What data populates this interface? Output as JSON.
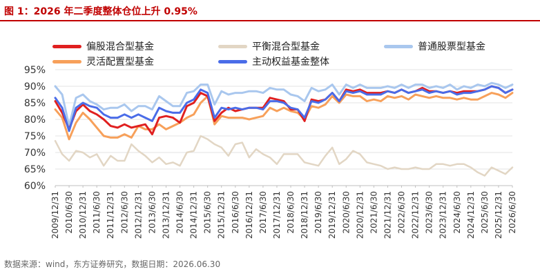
{
  "title": "图 1：2026 年二季度整体仓位上升 0.95%",
  "source": "数据来源：wind，东方证券研究，数据日期：2026.06.30",
  "colors": {
    "accent": "#c00000",
    "偏股混合型基金": "#e02020",
    "平衡混合型基金": "#e2d6c4",
    "普通股票型基金": "#a9c7ee",
    "灵活配置型基金": "#f7a05a",
    "主动权益基金整体": "#4a6ce8",
    "grid": "#e3e3e3",
    "axis_text": "#333333"
  },
  "chart_data": {
    "type": "line",
    "title": "图 1：2026 年二季度整体仓位上升 0.95%",
    "xlabel": "",
    "ylabel": "",
    "ylim": [
      60,
      95
    ],
    "yticks": [
      60,
      65,
      70,
      75,
      80,
      85,
      90,
      95
    ],
    "ytick_labels": [
      "60%",
      "65%",
      "70%",
      "75%",
      "80%",
      "85%",
      "90%",
      "95%"
    ],
    "grid": "horizontal",
    "legend_position": "top",
    "xtick_labels": [
      "2009/12/31",
      "2010/6/30",
      "2010/12/31",
      "2011/6/30",
      "2011/12/31",
      "2012/6/30",
      "2012/12/31",
      "2013/6/30",
      "2013/12/31",
      "2014/6/30",
      "2014/12/31",
      "2015/6/30",
      "2015/12/31",
      "2016/6/30",
      "2016/12/31",
      "2017/6/30",
      "2017/12/31",
      "2018/6/30",
      "2018/12/31",
      "2019/6/30",
      "2019/12/31",
      "2020/6/30",
      "2020/12/31",
      "2021/6/30",
      "2021/12/31",
      "2022/6/30",
      "2022/12/31",
      "2023/6/30",
      "2023/12/31",
      "2024/6/30",
      "2024/12/31",
      "2025/6/30",
      "2025/12/31",
      "2026/6/30"
    ],
    "x": [
      "2009/12/31",
      "2010/3/31",
      "2010/6/30",
      "2010/9/30",
      "2010/12/31",
      "2011/3/31",
      "2011/6/30",
      "2011/9/30",
      "2011/12/31",
      "2012/3/31",
      "2012/6/30",
      "2012/9/30",
      "2012/12/31",
      "2013/3/31",
      "2013/6/30",
      "2013/9/30",
      "2013/12/31",
      "2014/3/31",
      "2014/6/30",
      "2014/9/30",
      "2014/12/31",
      "2015/3/31",
      "2015/6/30",
      "2015/9/30",
      "2015/12/31",
      "2016/3/31",
      "2016/6/30",
      "2016/9/30",
      "2016/12/31",
      "2017/3/31",
      "2017/6/30",
      "2017/9/30",
      "2017/12/31",
      "2018/3/31",
      "2018/6/30",
      "2018/9/30",
      "2018/12/31",
      "2019/3/31",
      "2019/6/30",
      "2019/9/30",
      "2019/12/31",
      "2020/3/31",
      "2020/6/30",
      "2020/9/30",
      "2020/12/31",
      "2021/3/31",
      "2021/6/30",
      "2021/9/30",
      "2021/12/31",
      "2022/3/31",
      "2022/6/30",
      "2022/9/30",
      "2022/12/31",
      "2023/3/31",
      "2023/6/30",
      "2023/9/30",
      "2023/12/31",
      "2024/3/31",
      "2024/6/30",
      "2024/9/30",
      "2024/12/31",
      "2025/3/31",
      "2025/6/30",
      "2025/9/30",
      "2025/12/31",
      "2026/3/31",
      "2026/6/30"
    ],
    "series": [
      {
        "name": "偏股混合型基金",
        "color": "#e02020",
        "width": 3,
        "values": [
          85.5,
          82.0,
          77.0,
          82.5,
          84.5,
          82.5,
          81.5,
          80.0,
          78.0,
          77.5,
          78.5,
          77.5,
          78.0,
          78.5,
          75.5,
          80.5,
          81.0,
          80.5,
          79.0,
          84.0,
          85.0,
          88.0,
          87.0,
          79.5,
          82.0,
          83.5,
          82.5,
          83.0,
          83.5,
          83.5,
          83.5,
          86.5,
          86.0,
          85.5,
          83.0,
          83.0,
          79.5,
          86.0,
          85.5,
          86.0,
          88.0,
          85.5,
          89.0,
          88.5,
          89.0,
          88.0,
          88.0,
          88.0,
          88.5,
          88.0,
          89.0,
          88.0,
          88.5,
          89.5,
          88.5,
          88.5,
          88.0,
          88.5,
          88.0,
          88.5,
          88.5,
          88.5,
          89.0,
          90.0,
          89.5,
          88.0,
          89.0
        ]
      },
      {
        "name": "平衡混合型基金",
        "color": "#e2d6c4",
        "width": 2.5,
        "values": [
          73.5,
          69.5,
          67.5,
          70.5,
          70.0,
          68.5,
          69.5,
          66.0,
          69.0,
          67.5,
          67.5,
          72.5,
          70.5,
          69.0,
          67.0,
          68.5,
          66.5,
          67.0,
          66.0,
          70.0,
          70.5,
          75.0,
          74.0,
          72.5,
          71.5,
          69.0,
          72.5,
          73.0,
          68.5,
          71.0,
          69.5,
          68.5,
          66.5,
          69.5,
          69.5,
          69.5,
          67.0,
          66.5,
          66.0,
          69.0,
          71.5,
          66.5,
          68.0,
          70.5,
          69.5,
          67.0,
          66.5,
          66.0,
          65.0,
          65.5,
          65.0,
          65.0,
          65.5,
          65.0,
          65.0,
          66.5,
          66.5,
          66.0,
          66.5,
          66.5,
          65.5,
          64.0,
          63.0,
          65.5,
          64.5,
          63.5,
          65.5
        ]
      },
      {
        "name": "普通股票型基金",
        "color": "#a9c7ee",
        "width": 3,
        "values": [
          90.0,
          87.5,
          78.0,
          86.5,
          87.5,
          85.5,
          84.5,
          83.0,
          83.5,
          83.5,
          84.5,
          82.5,
          84.0,
          84.0,
          83.0,
          87.0,
          85.5,
          84.0,
          84.0,
          88.0,
          88.5,
          90.5,
          90.5,
          84.5,
          88.5,
          87.5,
          88.0,
          88.0,
          88.5,
          88.5,
          88.0,
          89.5,
          89.0,
          89.0,
          87.5,
          87.0,
          85.5,
          89.5,
          88.5,
          89.0,
          90.5,
          87.5,
          90.5,
          89.5,
          90.5,
          89.5,
          89.5,
          89.5,
          90.0,
          89.5,
          90.5,
          89.5,
          90.5,
          90.5,
          89.5,
          90.0,
          89.5,
          90.5,
          89.0,
          90.0,
          89.5,
          90.5,
          90.0,
          91.0,
          90.5,
          89.5,
          90.5
        ]
      },
      {
        "name": "灵活配置型基金",
        "color": "#f7a05a",
        "width": 3,
        "values": [
          83.0,
          80.5,
          74.0,
          79.0,
          82.0,
          80.0,
          77.5,
          75.0,
          74.5,
          74.5,
          75.5,
          74.5,
          78.0,
          77.0,
          77.0,
          78.5,
          77.0,
          78.0,
          79.0,
          80.5,
          81.5,
          85.0,
          87.0,
          78.5,
          81.0,
          80.5,
          80.5,
          80.5,
          80.0,
          80.5,
          81.0,
          83.5,
          82.5,
          83.5,
          82.5,
          82.0,
          80.0,
          84.0,
          83.5,
          84.5,
          87.0,
          85.0,
          87.5,
          87.0,
          87.0,
          85.5,
          86.0,
          85.5,
          87.0,
          86.5,
          87.0,
          86.0,
          87.5,
          87.0,
          86.5,
          87.0,
          86.5,
          86.5,
          86.0,
          86.5,
          86.0,
          86.0,
          87.0,
          88.0,
          87.5,
          86.5,
          88.0
        ]
      },
      {
        "name": "主动权益基金整体",
        "color": "#4a6ce8",
        "width": 3,
        "values": [
          86.5,
          83.5,
          76.5,
          83.5,
          85.0,
          84.0,
          83.5,
          81.5,
          80.5,
          80.5,
          81.5,
          80.5,
          81.5,
          80.5,
          79.5,
          83.5,
          82.5,
          82.0,
          82.0,
          85.0,
          86.0,
          89.0,
          88.0,
          80.5,
          83.5,
          83.0,
          83.5,
          83.0,
          83.5,
          83.5,
          83.0,
          85.5,
          85.5,
          85.0,
          83.5,
          83.0,
          80.5,
          85.5,
          85.0,
          86.0,
          88.0,
          85.5,
          88.5,
          88.0,
          88.5,
          87.5,
          87.5,
          87.5,
          88.5,
          88.0,
          89.0,
          88.0,
          88.5,
          89.0,
          88.0,
          88.5,
          88.0,
          88.5,
          87.5,
          88.0,
          88.0,
          88.5,
          89.0,
          90.0,
          89.5,
          88.0,
          89.0
        ]
      }
    ]
  }
}
